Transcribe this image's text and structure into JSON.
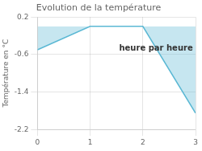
{
  "chart_data": {
    "type": "line",
    "title": "Evolution de la température",
    "ylabel": "Température en °C",
    "annotation": "heure par heure",
    "x": [
      0,
      1,
      2,
      3
    ],
    "series": [
      {
        "color": "#5bb8d4",
        "values": [
          -0.5,
          0.0,
          0.0,
          -1.85
        ]
      }
    ],
    "xlim": [
      0,
      3
    ],
    "ylim": [
      -2.2,
      0.2
    ],
    "xticks": [
      0,
      1,
      2,
      3
    ],
    "yticks": [
      0.2,
      -0.6,
      -1.4,
      -2.2
    ],
    "grid": true
  }
}
